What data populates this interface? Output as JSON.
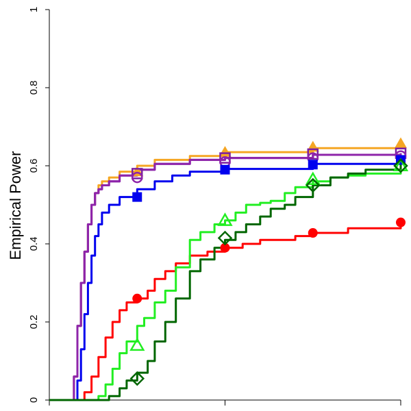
{
  "chart_data": {
    "type": "line",
    "title": "",
    "xlabel": "",
    "ylabel": "Empirical Power",
    "ylim": [
      0,
      1
    ],
    "xlim": [
      0,
      1
    ],
    "y_ticks": [
      "0",
      "0.2",
      "0.4",
      "0.6",
      "0.8",
      "1"
    ],
    "y_tick_values": [
      0,
      0.2,
      0.4,
      0.6,
      0.8,
      1
    ],
    "x_tick_values": [
      0,
      0.5,
      1
    ],
    "grid": false,
    "legend": "none",
    "series": [
      {
        "color": "#f5a623",
        "marker": "triangle-filled",
        "x": [
          0,
          0.06,
          0.07,
          0.08,
          0.09,
          0.1,
          0.11,
          0.12,
          0.13,
          0.14,
          0.15,
          0.17,
          0.2,
          0.25,
          0.3,
          0.4,
          0.5,
          0.75,
          1
        ],
        "y": [
          0,
          0,
          0.06,
          0.19,
          0.3,
          0.38,
          0.45,
          0.5,
          0.53,
          0.55,
          0.56,
          0.57,
          0.585,
          0.6,
          0.615,
          0.625,
          0.635,
          0.645,
          0.655
        ],
        "marker_x": [
          0.25,
          0.5,
          0.75,
          1
        ],
        "marker_y": [
          0.585,
          0.635,
          0.648,
          0.657
        ]
      },
      {
        "color": "#7b1fa2",
        "marker": "square-open",
        "x": [
          0,
          0.06,
          0.07,
          0.08,
          0.09,
          0.1,
          0.11,
          0.12,
          0.13,
          0.14,
          0.15,
          0.17,
          0.2,
          0.25,
          0.3,
          0.4,
          0.5,
          0.75,
          1
        ],
        "y": [
          0,
          0,
          0.06,
          0.19,
          0.3,
          0.38,
          0.45,
          0.5,
          0.53,
          0.54,
          0.55,
          0.56,
          0.575,
          0.59,
          0.605,
          0.615,
          0.62,
          0.628,
          0.632
        ],
        "marker_x": [
          0.25,
          0.5,
          0.75,
          1
        ],
        "marker_y": [
          0.58,
          0.62,
          0.63,
          0.632
        ]
      },
      {
        "color": "#8e24aa",
        "marker": "circle-open",
        "x": [
          0,
          0.06,
          0.07,
          0.08,
          0.09,
          0.1,
          0.11,
          0.12,
          0.13,
          0.14,
          0.15,
          0.17,
          0.2,
          0.25,
          0.3,
          0.4,
          0.5,
          0.75,
          1
        ],
        "y": [
          0,
          0,
          0.06,
          0.19,
          0.3,
          0.38,
          0.45,
          0.5,
          0.53,
          0.54,
          0.55,
          0.56,
          0.575,
          0.59,
          0.605,
          0.615,
          0.62,
          0.628,
          0.632
        ],
        "marker_x": [
          0.25,
          0.5,
          0.75,
          1
        ],
        "marker_y": [
          0.57,
          0.61,
          0.62,
          0.625
        ]
      },
      {
        "color": "#0000ee",
        "marker": "square-filled",
        "x": [
          0,
          0.07,
          0.08,
          0.09,
          0.1,
          0.11,
          0.12,
          0.13,
          0.14,
          0.15,
          0.17,
          0.2,
          0.25,
          0.3,
          0.35,
          0.4,
          0.5,
          0.75,
          1
        ],
        "y": [
          0,
          0,
          0.05,
          0.13,
          0.22,
          0.3,
          0.37,
          0.42,
          0.45,
          0.48,
          0.5,
          0.52,
          0.54,
          0.56,
          0.575,
          0.585,
          0.592,
          0.605,
          0.615
        ],
        "marker_x": [
          0.25,
          0.5,
          0.75,
          1
        ],
        "marker_y": [
          0.52,
          0.59,
          0.603,
          0.615
        ]
      },
      {
        "color": "#ff0000",
        "marker": "circle-filled",
        "x": [
          0,
          0.08,
          0.1,
          0.12,
          0.14,
          0.16,
          0.18,
          0.2,
          0.22,
          0.25,
          0.28,
          0.3,
          0.33,
          0.36,
          0.4,
          0.45,
          0.5,
          0.55,
          0.6,
          0.7,
          0.75,
          0.85,
          1
        ],
        "y": [
          0,
          0,
          0.02,
          0.06,
          0.11,
          0.16,
          0.2,
          0.23,
          0.25,
          0.26,
          0.28,
          0.31,
          0.33,
          0.35,
          0.37,
          0.38,
          0.39,
          0.4,
          0.41,
          0.42,
          0.428,
          0.44,
          0.445
        ],
        "marker_x": [
          0.25,
          0.5,
          0.75,
          1
        ],
        "marker_y": [
          0.26,
          0.39,
          0.428,
          0.455
        ]
      },
      {
        "color": "#22ee22",
        "marker": "triangle-open",
        "x": [
          0,
          0.12,
          0.14,
          0.16,
          0.18,
          0.2,
          0.22,
          0.25,
          0.27,
          0.3,
          0.33,
          0.36,
          0.4,
          0.43,
          0.47,
          0.5,
          0.53,
          0.56,
          0.6,
          0.63,
          0.67,
          0.7,
          0.75,
          0.8,
          0.85,
          0.9,
          1
        ],
        "y": [
          0,
          0,
          0.01,
          0.04,
          0.08,
          0.12,
          0.15,
          0.19,
          0.21,
          0.25,
          0.28,
          0.34,
          0.41,
          0.43,
          0.45,
          0.46,
          0.48,
          0.5,
          0.505,
          0.51,
          0.53,
          0.545,
          0.56,
          0.57,
          0.575,
          0.58,
          0.595
        ],
        "marker_x": [
          0.25,
          0.5,
          0.75,
          1
        ],
        "marker_y": [
          0.14,
          0.46,
          0.565,
          0.6
        ]
      },
      {
        "color": "#006600",
        "marker": "diamond-open",
        "x": [
          0,
          0.15,
          0.17,
          0.2,
          0.22,
          0.25,
          0.28,
          0.3,
          0.33,
          0.36,
          0.4,
          0.43,
          0.47,
          0.5,
          0.53,
          0.56,
          0.6,
          0.63,
          0.67,
          0.7,
          0.75,
          0.8,
          0.85,
          0.9,
          1
        ],
        "y": [
          0,
          0,
          0.01,
          0.03,
          0.05,
          0.07,
          0.1,
          0.15,
          0.2,
          0.26,
          0.33,
          0.36,
          0.39,
          0.41,
          0.43,
          0.45,
          0.47,
          0.49,
          0.5,
          0.52,
          0.55,
          0.57,
          0.58,
          0.59,
          0.61
        ],
        "marker_x": [
          0.25,
          0.5,
          0.75,
          1
        ],
        "marker_y": [
          0.055,
          0.415,
          0.55,
          0.6
        ]
      }
    ]
  }
}
